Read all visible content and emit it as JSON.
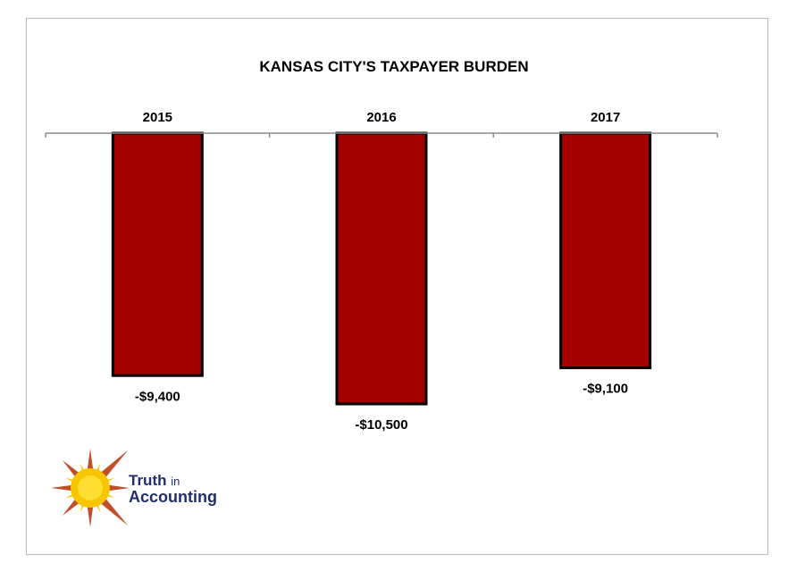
{
  "chart_data": {
    "type": "bar",
    "title": "KANSAS CITY'S TAXPAYER BURDEN",
    "categories": [
      "2015",
      "2016",
      "2017"
    ],
    "values": [
      -9400,
      -10500,
      -9100
    ],
    "value_labels": [
      "-$9,400",
      "-$10,500",
      "-$9,100"
    ],
    "ylim": [
      -10500,
      0
    ],
    "xaxis_position": "top",
    "grid": false,
    "bar_color": "#a50000",
    "bar_outline": "#000000"
  },
  "logo": {
    "word1": "Truth",
    "word2": "in",
    "word3": "Accounting",
    "text_color": "#1f2f6b",
    "sun_color": "#f7c600",
    "ray_color": "#c0502a"
  }
}
